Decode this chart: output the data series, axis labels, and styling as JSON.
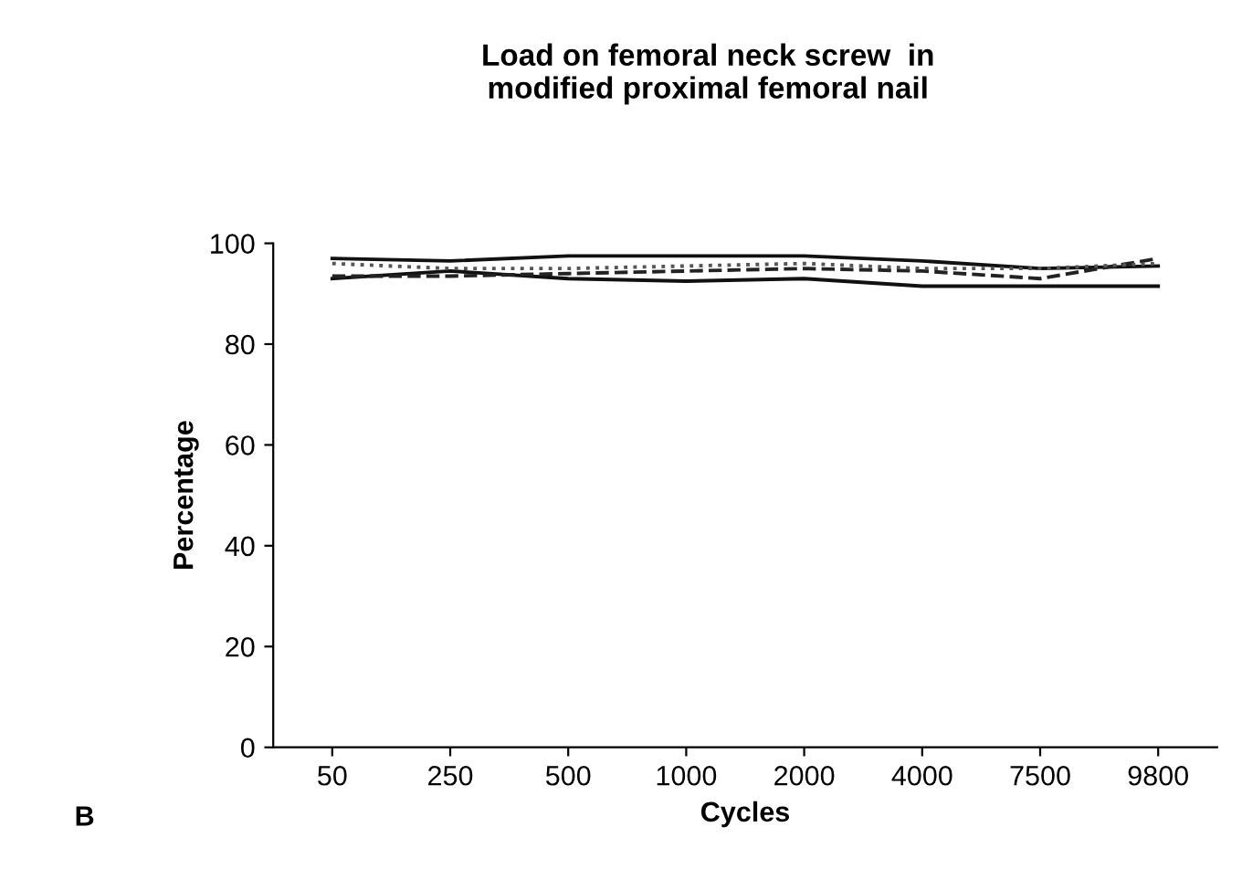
{
  "chart_data": {
    "type": "line",
    "title": "Load on femoral neck screw  in\nmodified proximal femoral nail",
    "xlabel": "Cycles",
    "ylabel": "Percentage",
    "categories": [
      "50",
      "250",
      "500",
      "1000",
      "2000",
      "4000",
      "7500",
      "9800"
    ],
    "series": [
      {
        "color": "#111111",
        "line_style": "solid",
        "values": [
          97,
          96.5,
          97.5,
          97.5,
          97.5,
          96.5,
          95,
          95.5
        ]
      },
      {
        "color": "#111111",
        "line_style": "solid",
        "values": [
          93,
          94.5,
          93,
          92.5,
          93,
          91.5,
          91.5,
          91.5
        ]
      },
      {
        "color": "#222222",
        "line_style": "dashed",
        "values": [
          93.5,
          93.5,
          94,
          94.5,
          95,
          94.5,
          93,
          97
        ]
      },
      {
        "color": "#555555",
        "line_style": "dotted",
        "values": [
          96,
          95,
          95,
          95.5,
          96,
          95,
          95,
          96
        ]
      }
    ],
    "ylim": [
      0,
      100
    ],
    "yticks": [
      0,
      20,
      40,
      60,
      80,
      100
    ],
    "grid": false,
    "marker": "none",
    "annotations": [
      "B"
    ]
  }
}
